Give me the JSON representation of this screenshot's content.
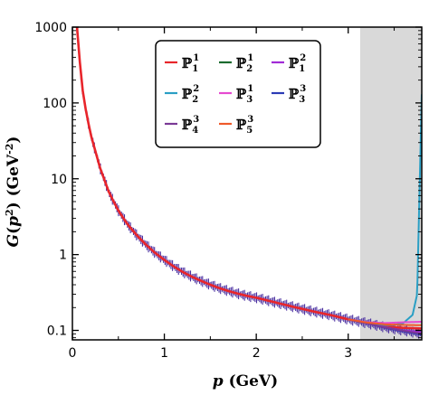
{
  "chart_data": {
    "type": "line",
    "xlabel": "p (GeV)",
    "ylabel": "G(p²) (GeV⁻²)",
    "xlim": [
      0,
      3.8
    ],
    "ylim": [
      0.075,
      1000
    ],
    "yscale": "log",
    "xticks": [
      "0",
      "1",
      "2",
      "3"
    ],
    "yticks": [
      "0.1",
      "1",
      "10",
      "100",
      "1000"
    ],
    "shaded_region": {
      "x_from": 3.13,
      "x_to": 3.8,
      "color": "#d9d9d9"
    },
    "grid": false,
    "legend_position": "top-right",
    "lattice_data": {
      "color": "#4a2fa0",
      "x": [
        0.05,
        0.1,
        0.15,
        0.2,
        0.3,
        0.4,
        0.5,
        0.6,
        0.7,
        0.8,
        0.9,
        1.0,
        1.1,
        1.2,
        1.3,
        1.4,
        1.5,
        1.6,
        1.7,
        1.8,
        1.9,
        2.0,
        2.2,
        2.4,
        2.6,
        2.8,
        3.0,
        3.2,
        3.4,
        3.6,
        3.8
      ],
      "y": [
        1000,
        180,
        75,
        38,
        14,
        6.5,
        3.8,
        2.5,
        1.8,
        1.35,
        1.05,
        0.85,
        0.7,
        0.59,
        0.51,
        0.45,
        0.4,
        0.36,
        0.33,
        0.305,
        0.285,
        0.27,
        0.235,
        0.205,
        0.18,
        0.16,
        0.14,
        0.125,
        0.11,
        0.1,
        0.09
      ]
    },
    "series": [
      {
        "name": "P_1^1",
        "sup": "1",
        "sub": "1",
        "color": "#e8252b",
        "x": [
          0.05,
          0.1,
          0.15,
          0.2,
          0.3,
          0.4,
          0.5,
          0.6,
          0.7,
          0.8,
          0.9,
          1.0,
          1.1,
          1.2,
          1.3,
          1.4,
          1.5,
          1.6,
          1.7,
          1.8,
          1.9,
          2.0,
          2.2,
          2.4,
          2.6,
          2.8,
          3.0,
          3.2,
          3.4,
          3.6,
          3.8
        ],
        "y": [
          1000,
          180,
          75,
          38,
          14,
          6.5,
          3.8,
          2.5,
          1.8,
          1.35,
          1.05,
          0.85,
          0.7,
          0.59,
          0.51,
          0.45,
          0.4,
          0.36,
          0.33,
          0.305,
          0.285,
          0.27,
          0.235,
          0.205,
          0.18,
          0.16,
          0.14,
          0.125,
          0.112,
          0.108,
          0.106
        ]
      },
      {
        "name": "P_2^1",
        "sup": "1",
        "sub": "2",
        "color": "#1b6b2f",
        "x": [
          3.0,
          3.2,
          3.4,
          3.6,
          3.8
        ],
        "y": [
          0.14,
          0.125,
          0.11,
          0.1,
          0.092
        ]
      },
      {
        "name": "P_1^2",
        "sup": "2",
        "sub": "1",
        "color": "#a12bd6",
        "x": [
          3.0,
          3.2,
          3.4,
          3.6,
          3.8
        ],
        "y": [
          0.14,
          0.125,
          0.11,
          0.1,
          0.095
        ]
      },
      {
        "name": "P_2^2",
        "sup": "2",
        "sub": "2",
        "color": "#2a9fc4",
        "x": [
          3.0,
          3.2,
          3.4,
          3.5,
          3.6,
          3.7,
          3.75,
          3.8
        ],
        "y": [
          0.14,
          0.126,
          0.118,
          0.118,
          0.125,
          0.16,
          0.3,
          130
        ]
      },
      {
        "name": "P_3^1",
        "sup": "1",
        "sub": "3",
        "color": "#e64ad0",
        "x": [
          3.0,
          3.2,
          3.4,
          3.6,
          3.8
        ],
        "y": [
          0.14,
          0.128,
          0.125,
          0.128,
          0.13
        ]
      },
      {
        "name": "P_3^3",
        "sup": "3",
        "sub": "3",
        "color": "#2b3bb5",
        "x": [
          3.0,
          3.2,
          3.4,
          3.6,
          3.8
        ],
        "y": [
          0.14,
          0.124,
          0.108,
          0.097,
          0.088
        ]
      },
      {
        "name": "P_4^3",
        "sup": "3",
        "sub": "4",
        "color": "#7a3a96",
        "x": [
          3.0,
          3.2,
          3.4,
          3.6,
          3.8
        ],
        "y": [
          0.14,
          0.124,
          0.109,
          0.099,
          0.09
        ]
      },
      {
        "name": "P_5^3",
        "sup": "3",
        "sub": "5",
        "color": "#ef5a2a",
        "x": [
          3.0,
          3.2,
          3.4,
          3.6,
          3.8
        ],
        "y": [
          0.14,
          0.127,
          0.12,
          0.118,
          0.117
        ]
      }
    ]
  }
}
